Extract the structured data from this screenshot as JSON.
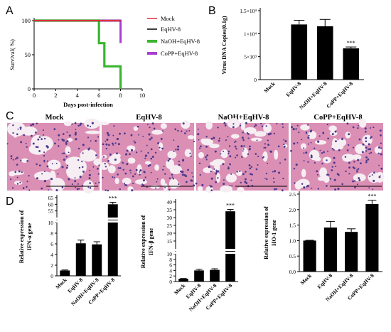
{
  "panels": {
    "A": "A",
    "B": "B",
    "C": "C",
    "D": "D"
  },
  "colors": {
    "mock": "#e0303a",
    "eqhv": "#000000",
    "naoh": "#3bb52f",
    "copp": "#a93fd0",
    "bar": "#000000",
    "tissue_bg": "#f1dfe8",
    "tissue_pink": "#dc8fb5",
    "tissue_nuclei": "#4b3a8c"
  },
  "histology": {
    "labels": [
      "Mock",
      "EqHV-8",
      "NaOH+EqHV-8",
      "CoPP+EqHV-8"
    ]
  },
  "chart_data": [
    {
      "type": "line",
      "panel": "A",
      "ylabel": "Survival( %)",
      "xlabel": "Days post-infection",
      "xlim": [
        0,
        10
      ],
      "ylim": [
        0,
        100
      ],
      "xticks": [
        "0",
        "2",
        "4",
        "6",
        "8",
        "10"
      ],
      "yticks": [
        "0",
        "50",
        "100"
      ],
      "legend_position": "right",
      "series": [
        {
          "name": "Mock",
          "x": [
            0,
            8
          ],
          "y": [
            100,
            100
          ],
          "color": "#e0303a"
        },
        {
          "name": "EqHV-8",
          "x": [
            0,
            8
          ],
          "y": [
            100,
            100
          ],
          "color": "#000000"
        },
        {
          "name": "NaOH+EqHV-8",
          "x": [
            0,
            6,
            6,
            6.5,
            6.5,
            7,
            7,
            8,
            8
          ],
          "y": [
            100,
            100,
            67,
            67,
            33,
            33,
            33,
            33,
            0
          ],
          "color": "#3bb52f"
        },
        {
          "name": "CoPP+EqHV-8",
          "x": [
            0,
            8,
            8
          ],
          "y": [
            100,
            100,
            67
          ],
          "color": "#a93fd0"
        }
      ]
    },
    {
      "type": "bar",
      "panel": "B",
      "ylabel": "Virus DNA Copies(0.1g)",
      "categories": [
        "Mock",
        "EqHV-8",
        "NaOH+EqHV-8",
        "CoPP+EqHV-8"
      ],
      "values": [
        0,
        12000,
        11600,
        6800
      ],
      "errors": [
        0,
        900,
        1500,
        300
      ],
      "ylim": [
        0,
        15000
      ],
      "yticks": [
        "0",
        "5×10³",
        "1×10⁴",
        "1.5×10⁴"
      ],
      "annotations": [
        "",
        "",
        "",
        "***"
      ]
    },
    {
      "type": "bar",
      "panel": "D1",
      "ylabel_line1": "Relative expression of",
      "ylabel_line2": "IFN-α gene",
      "categories": [
        "Mock",
        "EqHV-8",
        "NaOH+EqHV-8",
        "CoPP+EqHV-8"
      ],
      "values": [
        1,
        6.1,
        5.9,
        60
      ],
      "errors": [
        0.1,
        0.6,
        0.5,
        1.5
      ],
      "broken_axis": true,
      "lower_range": [
        0,
        10
      ],
      "upper_range": [
        50,
        65
      ],
      "yticks": [
        "0",
        "2",
        "4",
        "6",
        "8",
        "10",
        "55",
        "60",
        "65"
      ],
      "annotations": [
        "",
        "",
        "",
        "***"
      ]
    },
    {
      "type": "bar",
      "panel": "D2",
      "ylabel_line1": "Relative expression of",
      "ylabel_line2": "IFN-β gene",
      "categories": [
        "Mock",
        "EqHV-8",
        "NaOH+EqHV-8",
        "CoPP+EqHV-8"
      ],
      "values": [
        1,
        4.0,
        4.2,
        34
      ],
      "errors": [
        0.1,
        0.4,
        0.4,
        1.2
      ],
      "broken_axis": true,
      "lower_range": [
        0,
        10
      ],
      "upper_range": [
        10,
        40
      ],
      "yticks": [
        "0",
        "2",
        "4",
        "6",
        "8",
        "10",
        "15",
        "20",
        "25",
        "30",
        "35",
        "40"
      ],
      "annotations": [
        "",
        "",
        "",
        "***"
      ]
    },
    {
      "type": "bar",
      "panel": "D3",
      "ylabel_line1": "Relative expression of",
      "ylabel_line2": "HO-1 gene",
      "categories": [
        "Mock",
        "EqHV-8",
        "NaOH+EqHV-8",
        "CoPP+EqHV-8"
      ],
      "values": [
        1.0,
        1.42,
        1.28,
        2.18
      ],
      "errors": [
        0.01,
        0.2,
        0.1,
        0.12
      ],
      "ylim": [
        0,
        2.5
      ],
      "yticks": [
        "0.0",
        "0.5",
        "1.0",
        "1.5",
        "2.0",
        "2.5"
      ],
      "annotations": [
        "",
        "",
        "",
        "***"
      ]
    }
  ]
}
